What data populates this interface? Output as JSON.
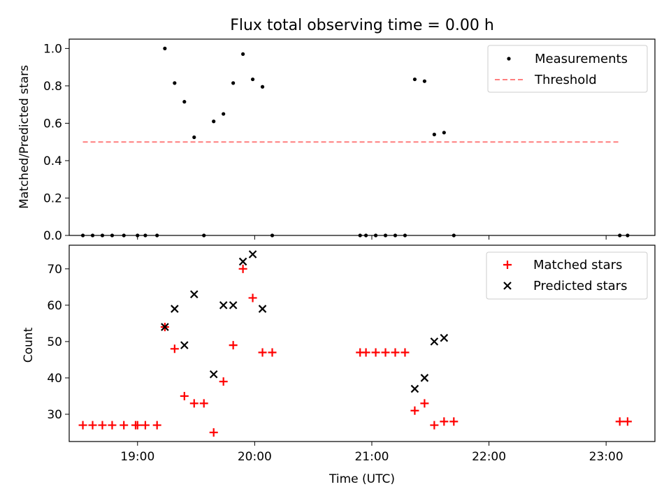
{
  "colors": {
    "threshold": "#ff7f7f",
    "matched": "#ff0000",
    "predicted": "#000000",
    "measurements": "#000000"
  },
  "chart_data": [
    {
      "type": "scatter",
      "title": "Flux total observing time = 0.00 h",
      "xlabel": "",
      "ylabel": "Matched/Predicted stars",
      "xlim": [
        "18:25",
        "23:25"
      ],
      "ylim": [
        0,
        1.05
      ],
      "yticks": [
        0.0,
        0.2,
        0.4,
        0.6,
        0.8,
        1.0
      ],
      "ytick_labels": [
        "0.0",
        "0.2",
        "0.4",
        "0.6",
        "0.8",
        "1.0"
      ],
      "legend": {
        "placement": "top-right",
        "measurements_label": "Measurements",
        "threshold_label": "Threshold"
      },
      "series": [
        {
          "name": "Measurements",
          "marker": "dot",
          "x": [
            "18:32",
            "18:37",
            "18:42",
            "18:47",
            "18:53",
            "19:00",
            "19:04",
            "19:10",
            "19:14",
            "19:19",
            "19:24",
            "19:29",
            "19:34",
            "19:39",
            "19:44",
            "19:49",
            "19:54",
            "19:59",
            "20:04",
            "20:09",
            "20:54",
            "20:57",
            "21:02",
            "21:07",
            "21:12",
            "21:17",
            "21:22",
            "21:27",
            "21:32",
            "21:37",
            "21:42",
            "23:07",
            "23:11"
          ],
          "y": [
            0.0,
            0.0,
            0.0,
            0.0,
            0.0,
            0.0,
            0.0,
            0.0,
            1.0,
            0.815,
            0.715,
            0.525,
            0.0,
            0.61,
            0.65,
            0.815,
            0.97,
            0.835,
            0.795,
            0.0,
            0.0,
            0.0,
            0.0,
            0.0,
            0.0,
            0.0,
            0.835,
            0.825,
            0.54,
            0.55,
            0.0,
            0.0,
            0.0
          ]
        },
        {
          "name": "Threshold",
          "style": "dashed",
          "x": [
            "18:32",
            "23:07"
          ],
          "y": [
            0.5,
            0.5
          ]
        }
      ]
    },
    {
      "type": "scatter",
      "title": "",
      "xlabel": "Time (UTC)",
      "ylabel": "Count",
      "xlim": [
        "18:25",
        "23:25"
      ],
      "ylim": [
        22.5,
        76.5
      ],
      "yticks": [
        30,
        40,
        50,
        60,
        70
      ],
      "ytick_labels": [
        "30",
        "40",
        "50",
        "60",
        "70"
      ],
      "xticks": [
        "19:00",
        "20:00",
        "21:00",
        "22:00",
        "23:00"
      ],
      "xtick_labels": [
        "19:00",
        "20:00",
        "21:00",
        "22:00",
        "23:00"
      ],
      "legend": {
        "placement": "top-right",
        "matched_label": "Matched stars",
        "predicted_label": "Predicted stars"
      },
      "series": [
        {
          "name": "Matched stars",
          "marker": "plus",
          "x": [
            "18:32",
            "18:37",
            "18:42",
            "18:47",
            "18:53",
            "18:59",
            "19:00",
            "19:04",
            "19:10",
            "19:14",
            "19:19",
            "19:24",
            "19:29",
            "19:34",
            "19:39",
            "19:44",
            "19:49",
            "19:54",
            "19:59",
            "20:04",
            "20:09",
            "20:54",
            "20:57",
            "21:02",
            "21:07",
            "21:12",
            "21:17",
            "21:22",
            "21:27",
            "21:32",
            "21:37",
            "21:42",
            "23:07",
            "23:11"
          ],
          "y": [
            27,
            27,
            27,
            27,
            27,
            27,
            27,
            27,
            27,
            54,
            48,
            35,
            33,
            33,
            25,
            39,
            49,
            70,
            62,
            47,
            47,
            47,
            47,
            47,
            47,
            47,
            47,
            31,
            33,
            27,
            28,
            28,
            28,
            28
          ]
        },
        {
          "name": "Predicted stars",
          "marker": "x",
          "x": [
            "19:14",
            "19:19",
            "19:24",
            "19:29",
            "19:39",
            "19:44",
            "19:49",
            "19:54",
            "19:59",
            "20:04",
            "21:22",
            "21:27",
            "21:32",
            "21:37"
          ],
          "y": [
            54,
            59,
            49,
            63,
            41,
            60,
            60,
            72,
            74,
            59,
            37,
            40,
            50,
            51
          ]
        }
      ]
    }
  ]
}
